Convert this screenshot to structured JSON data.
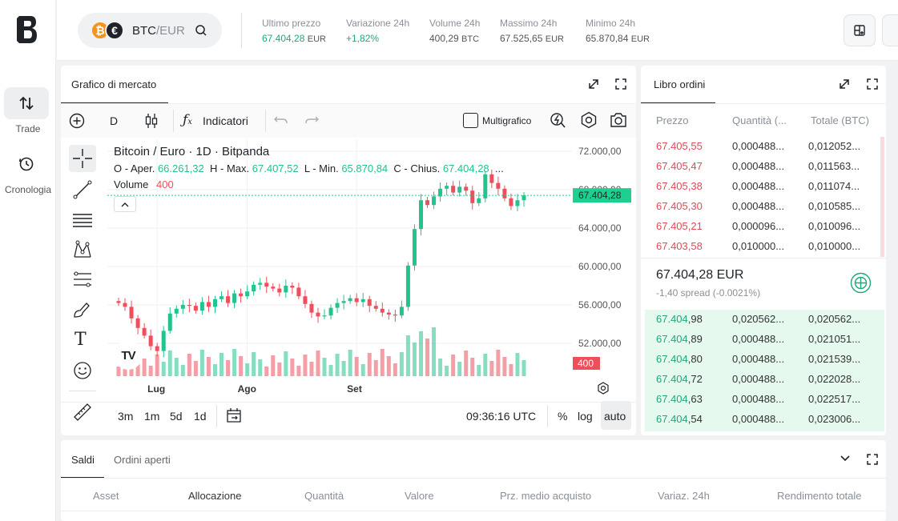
{
  "sidebar": {
    "items": [
      {
        "label": "Trade",
        "icon": "arrows-up-down-icon"
      },
      {
        "label": "Cronologia",
        "icon": "history-icon"
      }
    ]
  },
  "header": {
    "pair_base": "BTC",
    "pair_quote": "/EUR",
    "coin1": "₿",
    "coin2": "€",
    "stats": [
      {
        "label": "Ultimo prezzo",
        "value": "67.404,28",
        "unit": "EUR",
        "green": true
      },
      {
        "label": "Variazione 24h",
        "value": "+1,82%",
        "unit": "",
        "green": true
      },
      {
        "label": "Volume 24h",
        "value": "400,29",
        "unit": "BTC",
        "green": false
      },
      {
        "label": "Massimo 24h",
        "value": "67.525,65",
        "unit": "EUR",
        "green": false
      },
      {
        "label": "Minimo 24h",
        "value": "65.870,84",
        "unit": "EUR",
        "green": false
      }
    ]
  },
  "chart_panel": {
    "tab": "Grafico di mercato",
    "interval": "D",
    "indicators_label": "Indicatori",
    "multichart_label": "Multigrafico",
    "legend_title": "Bitcoin / Euro · 1D · Bitpanda",
    "ohlc": {
      "o_label": "O - Aper.",
      "o": "66.261,32",
      "h_label": "H - Max.",
      "h": "67.407,52",
      "l_label": "L - Min.",
      "l": "65.870,84",
      "c_label": "C - Chius.",
      "c": "67.404,28",
      "more": "..."
    },
    "volume_label": "Volume",
    "volume_value": "400",
    "range_buttons": [
      "3m",
      "1m",
      "5d",
      "1d"
    ],
    "time": "09:36:16 UTC",
    "scale_buttons": [
      "%",
      "log",
      "auto"
    ]
  },
  "chart_data": {
    "type": "candlestick",
    "y_ticks": [
      "72.000,00",
      "68.000,00",
      "64.000,00",
      "60.000,00",
      "56.000,00",
      "52.000,00"
    ],
    "y_tick_values": [
      72000,
      68000,
      64000,
      60000,
      56000,
      52000
    ],
    "x_ticks": [
      "Lug",
      "Ago",
      "Set"
    ],
    "last_price_label": "67.404,28",
    "last_price": 67404.28,
    "volume_last_label": "400",
    "ylim": [
      48000,
      73500
    ],
    "closes": [
      56200,
      55800,
      54600,
      53600,
      52800,
      51700,
      51200,
      53300,
      55100,
      55600,
      56000,
      55900,
      55400,
      56300,
      55800,
      56600,
      56900,
      56200,
      57200,
      56900,
      57400,
      58100,
      58300,
      57900,
      57700,
      57300,
      58000,
      57800,
      56900,
      56100,
      55200,
      54800,
      54900,
      55700,
      56200,
      56400,
      56700,
      56300,
      56600,
      55900,
      55600,
      55200,
      55000,
      54900,
      55800,
      60100,
      63900,
      66900,
      66400,
      67300,
      68100,
      68400,
      67700,
      68300,
      67900,
      66600,
      67100,
      69600,
      68700,
      68100,
      67100,
      66300,
      66900,
      67404
    ]
  },
  "order_book": {
    "tab": "Libro ordini",
    "headers": [
      "Prezzo",
      "Quantità (...",
      "Totale (BTC)"
    ],
    "asks": [
      {
        "price": "67.405,55",
        "qty": "0,000488...",
        "total": "0,012052..."
      },
      {
        "price": "67.405,47",
        "qty": "0,000488...",
        "total": "0,011563..."
      },
      {
        "price": "67.405,38",
        "qty": "0,000488...",
        "total": "0,011074..."
      },
      {
        "price": "67.405,30",
        "qty": "0,000488...",
        "total": "0,010585..."
      },
      {
        "price": "67.405,21",
        "qty": "0,000096...",
        "total": "0,010096..."
      },
      {
        "price": "67.403,58",
        "qty": "0,010000...",
        "total": "0,010000..."
      }
    ],
    "mid_price": "67.404,28 EUR",
    "spread": "-1,40 spread (-0.0021%)",
    "bids": [
      {
        "price_a": "67.404",
        "price_b": ",98",
        "qty": "0,020562...",
        "total": "0,020562..."
      },
      {
        "price_a": "67.404",
        "price_b": ",89",
        "qty": "0,000488...",
        "total": "0,021051..."
      },
      {
        "price_a": "67.404",
        "price_b": ",80",
        "qty": "0,000488...",
        "total": "0,021539..."
      },
      {
        "price_a": "67.404",
        "price_b": ",72",
        "qty": "0,000488...",
        "total": "0,022028..."
      },
      {
        "price_a": "67.404",
        "price_b": ",63",
        "qty": "0,000488...",
        "total": "0,022517..."
      },
      {
        "price_a": "67.404",
        "price_b": ",54",
        "qty": "0,000488...",
        "total": "0,023006..."
      }
    ]
  },
  "bottom": {
    "tabs": [
      "Saldi",
      "Ordini aperti"
    ],
    "columns": [
      "Asset",
      "Allocazione",
      "Quantità",
      "Valore",
      "Prz. medio acquisto",
      "Variaz. 24h",
      "Rendimento totale"
    ]
  },
  "colors": {
    "up": "#22c38e",
    "down": "#ef4f5b",
    "price_tag": "#1fcf8f"
  }
}
